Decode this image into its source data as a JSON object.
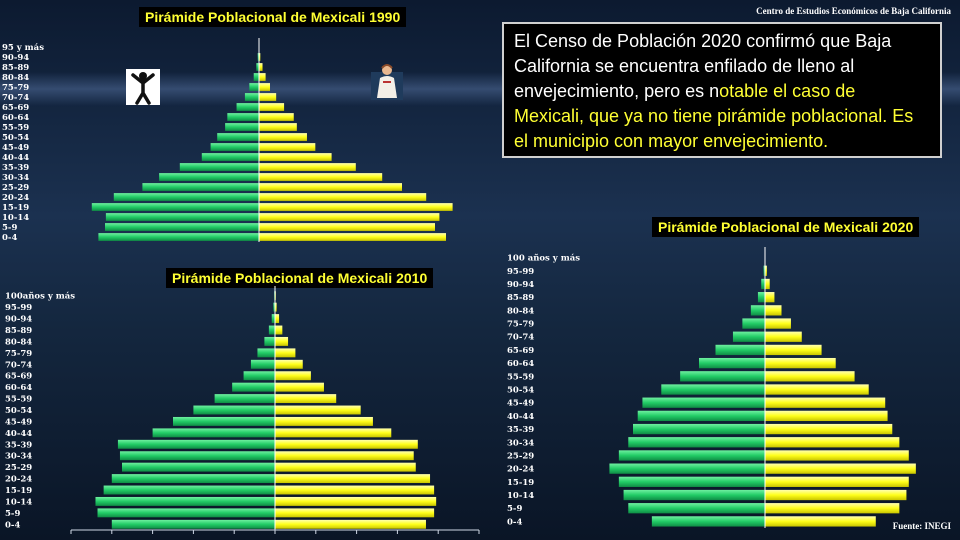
{
  "credit": "Centro de Estudios Económicos de Baja California",
  "source": "Fuente: INEGI",
  "textbox": {
    "part1": "El Censo de Población 2020 confirmó que Baja California se encuentra enfilado de lleno al envejecimiento, pero es n",
    "part2": "otable el caso de Mexicali, que ya no tiene pirámide poblacional. Es el municipio con mayor envejecimiento."
  },
  "icons": {
    "left": "athlete-silhouette-icon",
    "right": "elderly-person-icon"
  },
  "colors": {
    "male": "#22cc66",
    "female": "#ffff1a",
    "title_text": "#ffff33"
  },
  "chart_data": [
    {
      "type": "bar",
      "orientation": "horizontal-pyramid",
      "title": "Pirámide Poblacional de Mexicali 1990",
      "categories": [
        "95 y más",
        "90-94",
        "85-89",
        "80-84",
        "75-79",
        "70-74",
        "65-69",
        "60-64",
        "55-59",
        "50-54",
        "45-49",
        "40-44",
        "35-39",
        "30-34",
        "25-29",
        "20-24",
        "15-19",
        "10-14",
        "5-9",
        "0-4"
      ],
      "series": [
        {
          "values": [
            0.1,
            0.3,
            0.6,
            1.2,
            2.2,
            3.2,
            5.1,
            7.2,
            7.7,
            9.5,
            11.0,
            13.0,
            18.0,
            22.7,
            26.5,
            33.0,
            38.0,
            34.8,
            35.0,
            36.5
          ]
        },
        {
          "values": [
            0.1,
            0.3,
            0.8,
            1.5,
            2.5,
            3.9,
            5.7,
            7.9,
            8.6,
            10.9,
            12.8,
            16.5,
            22.0,
            28.0,
            32.5,
            38.0,
            44.0,
            41.0,
            40.0,
            42.5
          ]
        }
      ],
      "xlim": [
        -50,
        50
      ]
    },
    {
      "type": "bar",
      "orientation": "horizontal-pyramid",
      "title": "Pirámide Poblacional de Mexicali 2010",
      "categories": [
        "100años y más",
        "95-99",
        "90-94",
        "85-89",
        "80-84",
        "75-79",
        "70-74",
        "65-69",
        "60-64",
        "55-59",
        "50-54",
        "45-49",
        "40-44",
        "35-39",
        "30-34",
        "25-29",
        "20-24",
        "15-19",
        "10-14",
        "5-9",
        "0-4"
      ],
      "series": [
        {
          "values": [
            0.2,
            0.4,
            0.8,
            1.5,
            2.6,
            4.3,
            5.9,
            7.7,
            10.5,
            14.8,
            20.0,
            25.0,
            30.0,
            38.5,
            38.0,
            37.5,
            40.0,
            42.0,
            44.0,
            43.5,
            40.0
          ]
        },
        {
          "values": [
            0.2,
            0.4,
            1.0,
            1.8,
            3.2,
            5.0,
            6.8,
            8.8,
            12.0,
            15.0,
            21.0,
            24.0,
            28.5,
            35.0,
            34.0,
            34.5,
            38.0,
            39.0,
            39.5,
            39.0,
            37.0
          ]
        }
      ],
      "xlim": [
        -50,
        50
      ]
    },
    {
      "type": "bar",
      "orientation": "horizontal-pyramid",
      "title": "Pirámide Poblacional de Mexicali 2020",
      "categories": [
        "100 años y más",
        "95-99",
        "90-94",
        "85-89",
        "80-84",
        "75-79",
        "70-74",
        "65-69",
        "60-64",
        "55-59",
        "50-54",
        "45-49",
        "40-44",
        "35-39",
        "30-34",
        "25-29",
        "20-24",
        "15-19",
        "10-14",
        "5-9",
        "0-4"
      ],
      "series": [
        {
          "values": [
            0.1,
            0.3,
            0.8,
            1.5,
            3.0,
            4.8,
            6.8,
            10.5,
            14.0,
            18.0,
            22.0,
            26.0,
            27.0,
            28.0,
            29.0,
            31.0,
            33.0,
            31.0,
            30.0,
            29.0,
            24.0
          ]
        },
        {
          "values": [
            0.1,
            0.4,
            1.0,
            2.0,
            3.5,
            5.5,
            7.8,
            12.0,
            15.0,
            19.0,
            22.0,
            25.5,
            26.0,
            27.0,
            28.5,
            30.5,
            32.0,
            30.5,
            30.0,
            28.5,
            23.5
          ]
        }
      ],
      "xlim": [
        -35,
        35
      ]
    }
  ]
}
